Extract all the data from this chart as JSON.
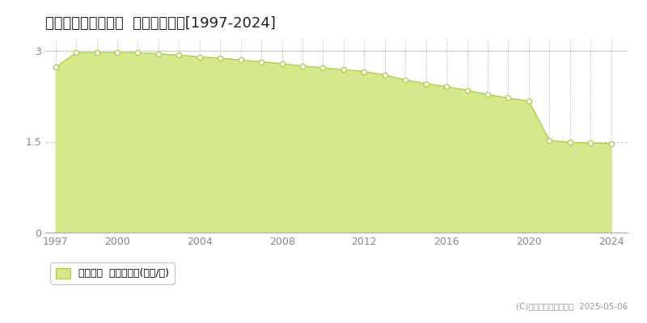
{
  "title": "球磨郡球磨村一勝地  基準地価推移[1997-2024]",
  "years": [
    1997,
    1998,
    1999,
    2000,
    2001,
    2002,
    2003,
    2004,
    2005,
    2006,
    2007,
    2008,
    2009,
    2010,
    2011,
    2012,
    2013,
    2014,
    2015,
    2016,
    2017,
    2018,
    2019,
    2020,
    2021,
    2022,
    2023,
    2024
  ],
  "values": [
    2.73,
    2.97,
    2.97,
    2.97,
    2.97,
    2.95,
    2.93,
    2.9,
    2.88,
    2.85,
    2.82,
    2.79,
    2.75,
    2.72,
    2.69,
    2.66,
    2.6,
    2.52,
    2.46,
    2.41,
    2.35,
    2.28,
    2.22,
    2.17,
    1.52,
    1.49,
    1.48,
    1.47
  ],
  "line_color": "#b5cc52",
  "fill_color": "#d6e88c",
  "marker_face": "#ffffff",
  "marker_edge": "#b5cc52",
  "bg_color": "#ffffff",
  "plot_bg_color": "#ffffff",
  "grid_color": "#cccccc",
  "ylim": [
    0,
    3.2
  ],
  "yticks": [
    0,
    1.5,
    3
  ],
  "xlim": [
    1996.5,
    2024.8
  ],
  "xticks": [
    1997,
    2000,
    2004,
    2008,
    2012,
    2016,
    2020,
    2024
  ],
  "legend_label": "基準地価  平均嵪単価(万円/嵪)",
  "copyright": "(C)土地価格ドットコム  2025-05-06",
  "title_fontsize": 13,
  "axis_fontsize": 9,
  "legend_fontsize": 9
}
